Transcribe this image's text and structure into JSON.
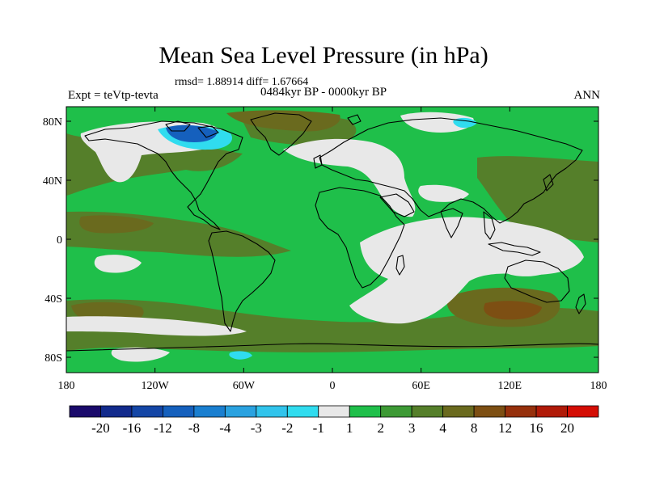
{
  "title": "Mean Sea Level Pressure (in hPa)",
  "stats": "rmsd= 1.88914 diff= 1.67664",
  "experiment": "Expt = teVtp-tevta",
  "period": "0484kyr BP - 0000kyr BP",
  "season": "ANN",
  "y_ticks": [
    "80N",
    "40N",
    "0",
    "40S",
    "80S"
  ],
  "x_ticks": [
    "180",
    "120W",
    "60W",
    "0",
    "60E",
    "120E",
    "180"
  ],
  "colorbar": {
    "labels": [
      "-20",
      "-16",
      "-12",
      "-8",
      "-4",
      "-3",
      "-2",
      "-1",
      "1",
      "2",
      "3",
      "4",
      "8",
      "12",
      "16",
      "20"
    ],
    "colors": [
      "#1a0a6b",
      "#122a8c",
      "#1446a6",
      "#1560bd",
      "#1a7fd0",
      "#2aa2e0",
      "#31c4ec",
      "#30dcef",
      "#e8e8e8",
      "#1fbf4a",
      "#3d9a35",
      "#557f2a",
      "#6a6a1e",
      "#7d4f13",
      "#96300c",
      "#b01a08",
      "#d40d04"
    ]
  },
  "colors": {
    "white": "#e8e8e8",
    "green": "#1fbf4a",
    "dkgreen": "#3d9a35",
    "olive": "#557f2a",
    "brown": "#6a6a1e",
    "dkbrown": "#7d4f13",
    "blue": "#1560bd",
    "cyan": "#30dcef"
  }
}
